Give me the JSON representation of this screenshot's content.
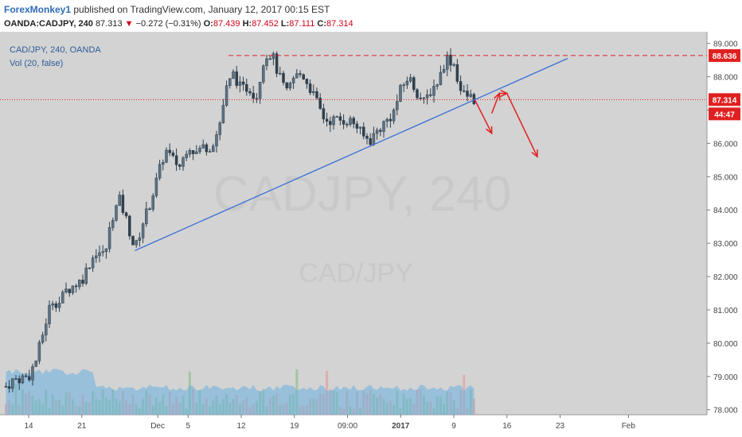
{
  "header": {
    "author": "ForexMonkey1",
    "published": "published on TradingView.com, January 12, 2017 00:15 EST",
    "symbol": "OANDA:CADJPY, 240",
    "last": "87.313",
    "change": "−0.272 (−0.31%)",
    "open_label": "O:",
    "open": "87.439",
    "high_label": "H:",
    "high": "87.452",
    "low_label": "L:",
    "low": "87.111",
    "close_label": "C:",
    "close": "87.314"
  },
  "legend": {
    "title": "CAD/JPY, 240, OANDA",
    "volume": "Vol (20, false)"
  },
  "watermark": {
    "main": "CADJPY, 240",
    "sub": "CAD/JPY"
  },
  "colors": {
    "up": "#3a4f5e",
    "down": "#3a4f5e",
    "trendline": "#3a6fd8",
    "arrow": "#e02020",
    "resistance": "#e02020",
    "price_tag": "#e02020",
    "volume_area": "#6ab0e0",
    "background": "#d3d3d3"
  },
  "chart_data": {
    "type": "candlestick",
    "title": "CAD/JPY, 240, OANDA",
    "y_ticks": [
      "89.000",
      "88.000",
      "87.000",
      "86.000",
      "85.000",
      "84.000",
      "83.000",
      "82.000",
      "81.000",
      "80.000",
      "79.000",
      "78.000"
    ],
    "ylim": [
      77.85,
      89.35
    ],
    "x_ticks": [
      "14",
      "21",
      "Dec",
      "5",
      "12",
      "19",
      "09:00",
      "2017",
      "9",
      "16",
      "23",
      "Feb"
    ],
    "price_labels": {
      "resistance": "88.636",
      "last": "87.314",
      "countdown": "44:47"
    },
    "resistance_level": 88.636,
    "current_level": 87.314,
    "trendline": {
      "from": {
        "date": "Nov 28",
        "price": 82.78
      },
      "to": {
        "date": "Jan 24",
        "price": 88.55
      }
    },
    "close_path": [
      [
        "Nov 11",
        78.7
      ],
      [
        "Nov 12",
        78.9
      ],
      [
        "Nov 14",
        79.0
      ],
      [
        "Nov 15",
        79.5
      ],
      [
        "Nov 16",
        80.4
      ],
      [
        "Nov 17",
        81.3
      ],
      [
        "Nov 18",
        81.2
      ],
      [
        "Nov 19",
        81.6
      ],
      [
        "Nov 21",
        81.9
      ],
      [
        "Nov 22",
        82.4
      ],
      [
        "Nov 23",
        82.8
      ],
      [
        "Nov 24",
        82.6
      ],
      [
        "Nov 25",
        83.8
      ],
      [
        "Nov 26",
        84.3
      ],
      [
        "Nov 27",
        83.6
      ],
      [
        "Nov 28",
        82.8
      ],
      [
        "Nov 29",
        83.6
      ],
      [
        "Nov 30",
        84.2
      ],
      [
        "Dec 1",
        85.0
      ],
      [
        "Dec 2",
        85.8
      ],
      [
        "Dec 3",
        85.5
      ],
      [
        "Dec 4",
        85.3
      ],
      [
        "Dec 5",
        86.0
      ],
      [
        "Dec 6",
        85.7
      ],
      [
        "Dec 7",
        85.9
      ],
      [
        "Dec 8",
        85.9
      ],
      [
        "Dec 9",
        86.4
      ],
      [
        "Dec 10",
        87.6
      ],
      [
        "Dec 11",
        88.1
      ],
      [
        "Dec 12",
        87.6
      ],
      [
        "Dec 13",
        87.7
      ],
      [
        "Dec 14",
        87.4
      ],
      [
        "Dec 15",
        88.6
      ],
      [
        "Dec 16",
        88.7
      ],
      [
        "Dec 17",
        88.0
      ],
      [
        "Dec 18",
        87.5
      ],
      [
        "Dec 19",
        88.0
      ],
      [
        "Dec 20",
        88.1
      ],
      [
        "Dec 21",
        87.7
      ],
      [
        "Dec 22",
        87.2
      ],
      [
        "Dec 23",
        86.7
      ],
      [
        "Dec 26",
        86.7
      ],
      [
        "Dec 27",
        86.6
      ],
      [
        "Dec 28",
        86.2
      ],
      [
        "Dec 29",
        86.1
      ],
      [
        "Dec 30",
        86.4
      ],
      [
        "Jan 1",
        86.9
      ],
      [
        "Jan 2",
        87.6
      ],
      [
        "Jan 3",
        88.0
      ],
      [
        "Jan 4",
        87.6
      ],
      [
        "Jan 5",
        87.2
      ],
      [
        "Jan 6",
        87.6
      ],
      [
        "Jan 7",
        87.9
      ],
      [
        "Jan 8",
        88.6
      ],
      [
        "Jan 9",
        88.4
      ],
      [
        "Jan 10",
        87.5
      ],
      [
        "Jan 11",
        87.4
      ],
      [
        "Jan 12",
        87.3
      ]
    ],
    "volume_max_ratio": 0.25,
    "projection_arrows": [
      {
        "from": [
          "Jan 12",
          87.3
        ],
        "to": [
          "Jan 14",
          86.3
        ]
      },
      {
        "from": [
          "Jan 14",
          86.9
        ],
        "to": [
          "Jan 15",
          87.5
        ]
      },
      {
        "from": [
          "Jan 15",
          87.5
        ],
        "to": [
          "Jan 16",
          87.5
        ]
      },
      {
        "from": [
          "Jan 16",
          87.5
        ],
        "to": [
          "Jan 20",
          85.6
        ]
      }
    ]
  }
}
